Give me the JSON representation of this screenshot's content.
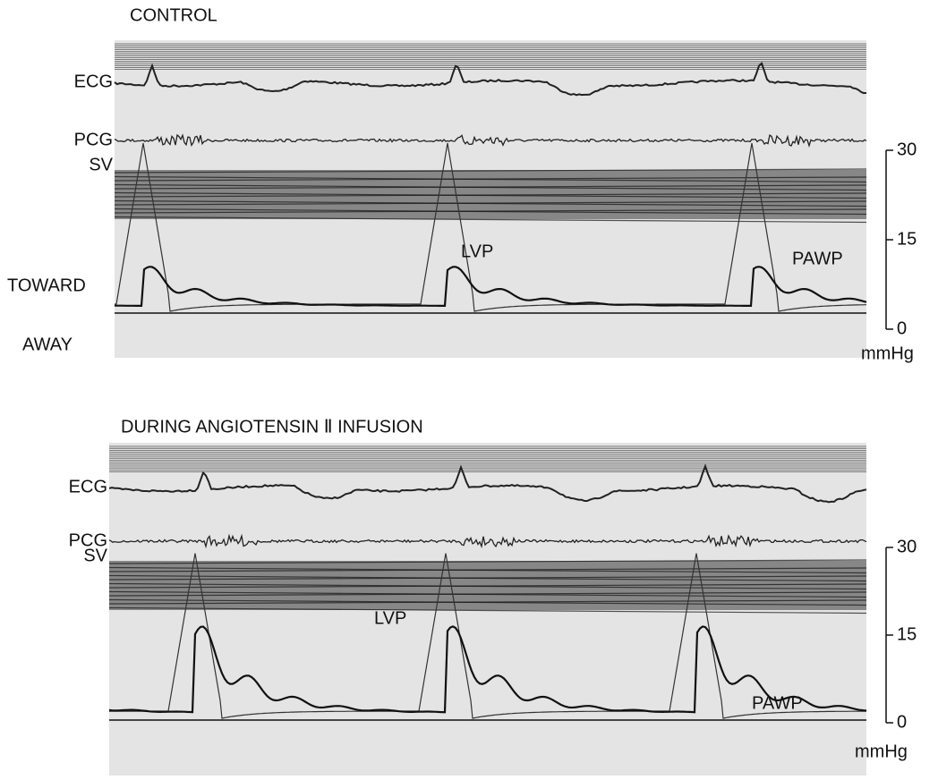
{
  "panels": [
    {
      "title": "CONTROL",
      "labels": {
        "ecg": "ECG",
        "pcg": "PCG",
        "sv": "SV",
        "lvp": "LVP",
        "pawp": "PAWP",
        "toward": "TOWARD",
        "away": "AWAY"
      },
      "scale": {
        "ticks": [
          30,
          15,
          0
        ],
        "unit": "mmHg"
      }
    },
    {
      "title": "DURING  ANGIOTENSIN Ⅱ  INFUSION",
      "labels": {
        "ecg": "ECG",
        "pcg": "PCG",
        "sv": "SV",
        "lvp": "LVP",
        "pawp": "PAWP"
      },
      "scale": {
        "ticks": [
          30,
          15,
          0
        ],
        "unit": "mmHg"
      }
    }
  ]
}
